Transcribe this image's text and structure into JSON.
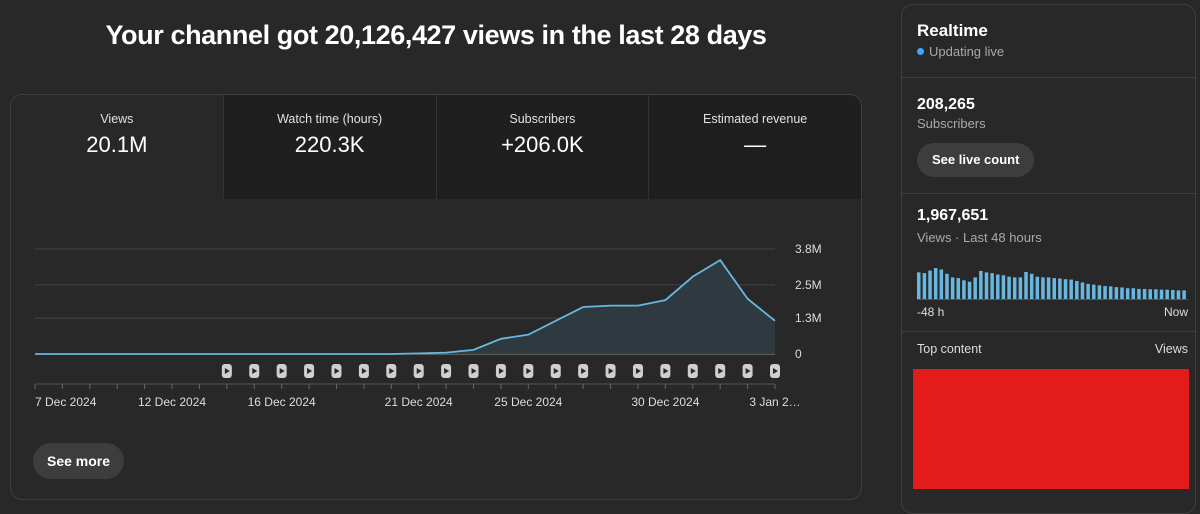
{
  "headline": "Your channel got 20,126,427 views in the last 28 days",
  "metrics": [
    {
      "label": "Views",
      "value": "20.1M"
    },
    {
      "label": "Watch time (hours)",
      "value": "220.3K"
    },
    {
      "label": "Subscribers",
      "value": "+206.0K"
    },
    {
      "label": "Estimated revenue",
      "value": "—"
    }
  ],
  "see_more": "See more",
  "chart_data": {
    "type": "area",
    "title": "Views",
    "x": [
      0,
      1,
      2,
      3,
      4,
      5,
      6,
      7,
      8,
      9,
      10,
      11,
      12,
      13,
      14,
      15,
      16,
      17,
      18,
      19,
      20,
      21,
      22,
      23,
      24,
      25,
      26,
      27
    ],
    "x_tick_labels": [
      {
        "x": 0,
        "label": "7 Dec 2024"
      },
      {
        "x": 5,
        "label": "12 Dec 2024"
      },
      {
        "x": 9,
        "label": "16 Dec 2024"
      },
      {
        "x": 14,
        "label": "21 Dec 2024"
      },
      {
        "x": 18,
        "label": "25 Dec 2024"
      },
      {
        "x": 23,
        "label": "30 Dec 2024"
      },
      {
        "x": 27,
        "label": "3 Jan 2…"
      }
    ],
    "values": [
      0,
      0,
      0,
      0,
      0,
      0,
      0,
      0,
      0,
      0,
      0,
      0,
      0,
      0,
      0.02,
      0.05,
      0.15,
      0.55,
      0.7,
      1.2,
      1.7,
      1.75,
      1.75,
      1.95,
      2.8,
      3.4,
      2.0,
      1.2
    ],
    "y_ticks": [
      0,
      1.3,
      2.5,
      3.8
    ],
    "y_tick_labels": [
      "0",
      "1.3M",
      "2.5M",
      "3.8M"
    ],
    "ylim": [
      0,
      3.8
    ],
    "unit": "M",
    "shorts_markers_from_index": 7,
    "colors": {
      "line": "#67b7e0",
      "fill": "#2f3c42",
      "grid": "#444444",
      "axis": "#8a8a8a",
      "text": "#dddddd"
    }
  },
  "realtime": {
    "title": "Realtime",
    "status": "Updating live",
    "subscribers_value": "208,265",
    "subscribers_label": "Subscribers",
    "live_count_button": "See live count",
    "views_value": "1,967,651",
    "views_label": "Views · Last 48 hours",
    "hourly_bars": [
      0.74,
      0.72,
      0.79,
      0.86,
      0.82,
      0.7,
      0.6,
      0.58,
      0.52,
      0.48,
      0.6,
      0.78,
      0.74,
      0.72,
      0.68,
      0.66,
      0.62,
      0.6,
      0.6,
      0.75,
      0.7,
      0.62,
      0.6,
      0.6,
      0.58,
      0.57,
      0.55,
      0.54,
      0.5,
      0.46,
      0.42,
      0.4,
      0.38,
      0.36,
      0.35,
      0.33,
      0.32,
      0.3,
      0.3,
      0.28,
      0.28,
      0.27,
      0.27,
      0.26,
      0.26,
      0.25,
      0.24,
      0.24
    ],
    "axis_left": "-48 h",
    "axis_right": "Now",
    "top_content_label": "Top content",
    "top_content_views": "Views",
    "bar_color": "#67b7e0"
  }
}
